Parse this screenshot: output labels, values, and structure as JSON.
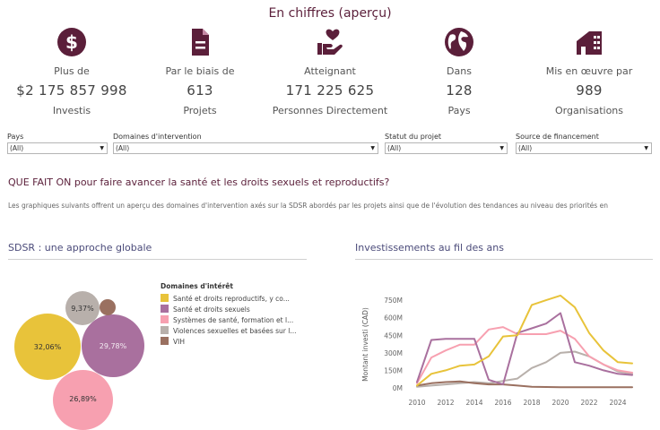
{
  "page": {
    "title": "En chiffres (aperçu)"
  },
  "kpis": [
    {
      "icon": "dollar-icon",
      "pre": "Plus de",
      "value": "$2 175 857 998",
      "unit": "Investis"
    },
    {
      "icon": "document-icon",
      "pre": "Par le biais de",
      "value": "613",
      "unit": "Projets"
    },
    {
      "icon": "hand-heart-icon",
      "pre": "Atteignant",
      "value": "171 225 625",
      "unit": "Personnes Directement"
    },
    {
      "icon": "globe-icon",
      "pre": "Dans",
      "value": "128",
      "unit": "Pays"
    },
    {
      "icon": "building-icon",
      "pre": "Mis en œuvre par",
      "value": "989",
      "unit": "Organisations"
    }
  ],
  "filters": [
    {
      "label": "Pays",
      "value": "(All)"
    },
    {
      "label": "Domaines d'intervention",
      "value": "(All)"
    },
    {
      "label": "Statut du projet",
      "value": "(All)"
    },
    {
      "label": "Source de financement",
      "value": "(All)"
    }
  ],
  "question": "QUE FAIT ON pour faire avancer la santé et les droits sexuels et reproductifs?",
  "description": "Les graphiques suivants offrent un aperçu des domaines d'intervention axés sur la SDSR abordés par les projets ainsi que de l'évolution des tendances au niveau des priorités en",
  "sections": {
    "left_title": "SDSR : une approche globale",
    "right_title": "Investissements au fil des ans"
  },
  "colors": {
    "accent": "#5b1f3a",
    "yellow": "#e8c33a",
    "purple": "#a9709e",
    "pink": "#f7a0b0",
    "grey": "#b8b0ab",
    "brown": "#9a7060"
  },
  "bubbles": {
    "legend_title": "Domaines d'intérêt",
    "legend": [
      {
        "label": "Santé et droits reproductifs, y co...",
        "color": "#e8c33a"
      },
      {
        "label": "Santé et droits sexuels",
        "color": "#a9709e"
      },
      {
        "label": "Systèmes de santé, formation et l...",
        "color": "#f7a0b0"
      },
      {
        "label": "Violences sexuelles et basées sur l...",
        "color": "#b8b0ab"
      },
      {
        "label": "VIH",
        "color": "#9a7060"
      }
    ],
    "items": [
      {
        "label": "32,06%",
        "value": 32.06,
        "color": "#e8c33a"
      },
      {
        "label": "29,78%",
        "value": 29.78,
        "color": "#a9709e"
      },
      {
        "label": "26,89%",
        "value": 26.89,
        "color": "#f7a0b0"
      },
      {
        "label": "9,37%",
        "value": 9.37,
        "color": "#b8b0ab"
      },
      {
        "label": "",
        "value": 1.9,
        "color": "#9a7060"
      }
    ]
  },
  "chart_data": {
    "type": "line",
    "title": "Investissements au fil des ans",
    "ylabel": "Montant investi (CAD)",
    "xlabel": "",
    "y_ticks": [
      "0M",
      "150M",
      "300M",
      "450M",
      "600M",
      "750M"
    ],
    "y_tick_values": [
      0,
      150,
      300,
      450,
      600,
      750
    ],
    "x_ticks": [
      "2010",
      "2012",
      "2014",
      "2016",
      "2018",
      "2020",
      "2022",
      "2024"
    ],
    "x_tick_values": [
      2010,
      2012,
      2014,
      2016,
      2018,
      2020,
      2022,
      2024
    ],
    "ylim": [
      0,
      820
    ],
    "xlim": [
      2009.5,
      2025.5
    ],
    "grid": false,
    "x": [
      2010,
      2011,
      2012,
      2013,
      2014,
      2015,
      2016,
      2017,
      2018,
      2019,
      2020,
      2021,
      2022,
      2023,
      2024,
      2025
    ],
    "series": [
      {
        "color": "#e8c33a",
        "values": [
          20,
          120,
          150,
          190,
          200,
          270,
          440,
          450,
          710,
          750,
          790,
          690,
          470,
          320,
          220,
          210
        ]
      },
      {
        "color": "#a9709e",
        "values": [
          50,
          410,
          420,
          420,
          420,
          70,
          30,
          470,
          510,
          550,
          640,
          220,
          190,
          150,
          120,
          110
        ]
      },
      {
        "color": "#f7a0b0",
        "values": [
          40,
          260,
          320,
          370,
          370,
          500,
          520,
          460,
          460,
          460,
          490,
          420,
          270,
          200,
          150,
          130
        ]
      },
      {
        "color": "#b8b0ab",
        "values": [
          10,
          20,
          30,
          40,
          50,
          40,
          60,
          80,
          170,
          220,
          300,
          310,
          270,
          200,
          140,
          120
        ]
      },
      {
        "color": "#9a7060",
        "values": [
          20,
          40,
          50,
          55,
          40,
          30,
          30,
          20,
          10,
          8,
          5,
          5,
          5,
          5,
          5,
          5
        ]
      }
    ]
  }
}
